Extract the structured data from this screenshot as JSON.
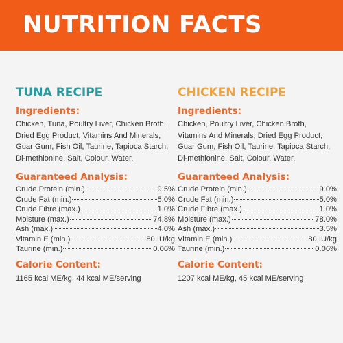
{
  "header": {
    "title": "NUTRITION FACTS"
  },
  "colors": {
    "banner": "#f25c19",
    "tuna_title": "#2b9aa0",
    "chicken_title": "#f0a23a",
    "section_title": "#e8692c"
  },
  "tuna": {
    "title": "TUNA RECIPE",
    "ingredients_heading": "Ingredients:",
    "ingredients": "Chicken, Tuna, Poultry Liver, Chicken Broth, Dried Egg Product, Vitamins And Minerals, Guar Gum, Fish Oil, Taurine, Tapioca Starch, Dl-methionine, Salt, Colour, Water.",
    "analysis_heading": "Guaranteed Analysis:",
    "analysis": [
      {
        "label": "Crude Protein (min.)",
        "value": "9.5%"
      },
      {
        "label": "Crude Fat (min.)",
        "value": "5.0%"
      },
      {
        "label": "Crude Fibre (max.)",
        "value": "1.0%"
      },
      {
        "label": "Moisture (max.)",
        "value": "74.8%"
      },
      {
        "label": "Ash (max.)",
        "value": "4.0%"
      },
      {
        "label": "Vitamin E (min.)",
        "value": "80 IU/kg"
      },
      {
        "label": "Taurine (min.)",
        "value": "0.06%"
      }
    ],
    "calorie_heading": "Calorie Content:",
    "calorie": "1165 kcal ME/kg, 44 kcal ME/serving"
  },
  "chicken": {
    "title": "CHICKEN RECIPE",
    "ingredients_heading": "Ingredients:",
    "ingredients": "Chicken, Poultry Liver, Chicken Broth, Vitamins And Minerals, Dried Egg Product, Guar Gum, Fish Oil, Taurine, Tapioca Starch, Dl-methionine, Salt, Colour, Water.",
    "analysis_heading": "Guaranteed Analysis:",
    "analysis": [
      {
        "label": "Crude Protein (min.)",
        "value": "9.0%"
      },
      {
        "label": "Crude Fat (min.)",
        "value": "5.0%"
      },
      {
        "label": "Crude Fibre (max.)",
        "value": "1.0%"
      },
      {
        "label": "Moisture (max.)",
        "value": "78.0%"
      },
      {
        "label": "Ash (max.)",
        "value": "3.5%"
      },
      {
        "label": "Vitamin E (min.)",
        "value": "80 IU/kg"
      },
      {
        "label": "Taurine (min.)",
        "value": "0.06%"
      }
    ],
    "calorie_heading": "Calorie Content:",
    "calorie": "1207 kcal ME/kg, 45 kcal ME/serving"
  }
}
